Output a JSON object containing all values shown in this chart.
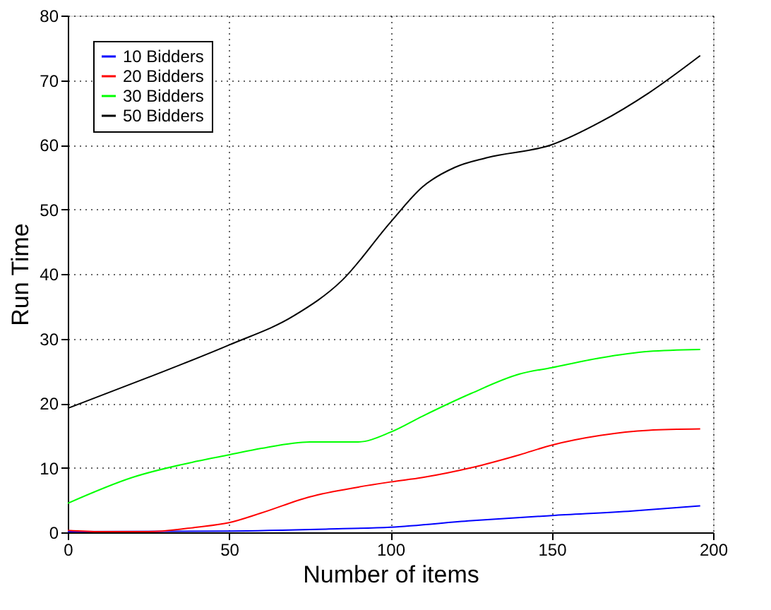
{
  "chart_data": {
    "type": "line",
    "xlabel": "Number of items",
    "ylabel": "Run Time",
    "xlim": [
      0,
      200
    ],
    "xticks": [
      0,
      50,
      100,
      150,
      200
    ],
    "ylim": [
      0,
      80
    ],
    "yticks": [
      0,
      10,
      20,
      30,
      40,
      50,
      60,
      70,
      80
    ],
    "grid": true,
    "legend": "top left",
    "marker": "none",
    "line_style": "solid",
    "series": [
      {
        "name": "10 Bidders",
        "color": "#0000ff",
        "x": [
          0,
          50,
          80,
          100,
          125,
          150,
          175,
          196
        ],
        "values": [
          0.1,
          0.2,
          0.5,
          0.8,
          1.8,
          2.6,
          3.3,
          4.1
        ]
      },
      {
        "name": "20 Bidders",
        "color": "#ff0000",
        "x": [
          0,
          10,
          25,
          40,
          50,
          60,
          75,
          90,
          100,
          110,
          125,
          140,
          150,
          165,
          180,
          196
        ],
        "values": [
          0.3,
          0.1,
          0.1,
          0.8,
          1.5,
          3,
          5.5,
          7,
          7.8,
          8.5,
          10,
          12,
          13.5,
          15,
          15.8,
          16
        ]
      },
      {
        "name": "30 Bidders",
        "color": "#00ff00",
        "x": [
          0,
          20,
          40,
          50,
          60,
          75,
          90,
          100,
          110,
          125,
          140,
          150,
          165,
          180,
          196
        ],
        "values": [
          4.5,
          8.5,
          11,
          12,
          13,
          14,
          14,
          15.5,
          18,
          21.5,
          24.5,
          25.5,
          27,
          28,
          28.3
        ]
      },
      {
        "name": "50 Bidders",
        "color": "#000000",
        "x": [
          0,
          25,
          50,
          70,
          85,
          100,
          110,
          120,
          130,
          150,
          165,
          180,
          196
        ],
        "values": [
          19.2,
          24,
          29,
          33.5,
          39,
          48,
          53.5,
          56.5,
          58,
          60,
          63.5,
          68,
          73.8
        ]
      }
    ]
  }
}
